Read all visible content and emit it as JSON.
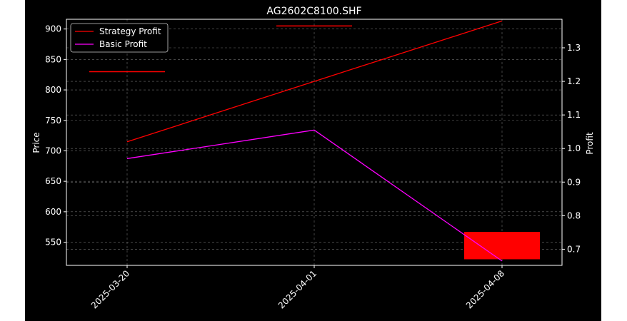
{
  "chart_data": {
    "type": "candlestick-line",
    "title": "AG2602C8100.SHF",
    "xlabel": "",
    "ylabel_left": "Price",
    "ylabel_right": "Profit",
    "x_categories": [
      "2025-03-20",
      "2025-04-01",
      "2025-04-08"
    ],
    "ylim_left": [
      512,
      916
    ],
    "ylim_right": [
      0.652,
      1.385
    ],
    "yticks_left": [
      550,
      600,
      650,
      700,
      750,
      800,
      850,
      900
    ],
    "yticks_right": [
      0.7,
      0.8,
      0.9,
      1.0,
      1.1,
      1.2,
      1.3
    ],
    "grid": true,
    "legend_position": "top-left",
    "candles": [
      {
        "date": "2025-03-20",
        "open": 830,
        "close": 830,
        "high": 830,
        "low": 830,
        "color": "#ff0000"
      },
      {
        "date": "2025-04-01",
        "open": 905,
        "close": 905,
        "high": 905,
        "low": 905,
        "color": "#ff0000"
      },
      {
        "date": "2025-04-08",
        "open": 567,
        "close": 522,
        "high": 567,
        "low": 522,
        "color": "#ff0000"
      }
    ],
    "series": [
      {
        "name": "Strategy Profit",
        "axis": "right",
        "color": "#ff0000",
        "x": [
          "2025-03-20",
          "2025-04-01",
          "2025-04-08"
        ],
        "values": [
          1.02,
          1.2,
          1.38
        ]
      },
      {
        "name": "Basic Profit",
        "axis": "right",
        "color": "#ff00ff",
        "x": [
          "2025-03-20",
          "2025-04-01",
          "2025-04-08"
        ],
        "values": [
          0.97,
          1.055,
          0.665
        ]
      }
    ]
  }
}
